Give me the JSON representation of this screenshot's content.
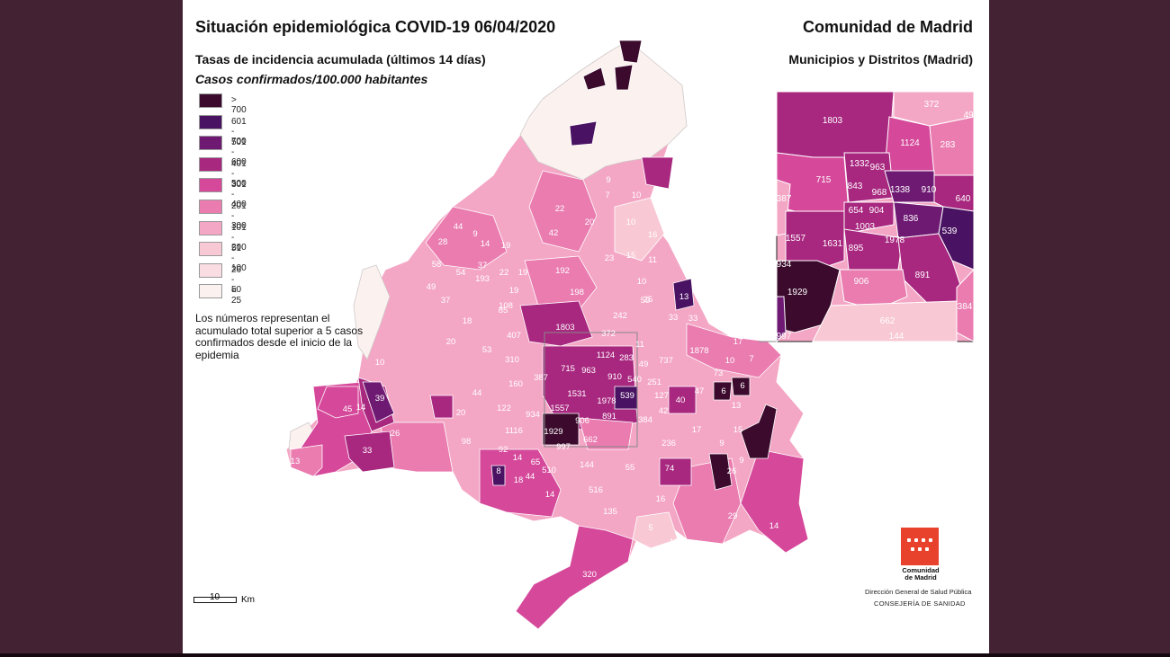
{
  "header": {
    "title": "Situación epidemiológica COVID-19  06/04/2020",
    "subtitle": "Tasas de incidencia acumulada (últimos 14 días)",
    "subtitle2": "Casos confirmados/100.000 habitantes",
    "org": "Comunidad de Madrid",
    "org_sub": "Municipios y Distritos (Madrid)"
  },
  "legend": [
    {
      "label": "> 700",
      "color": "#3b0a2c"
    },
    {
      "label": "601 - 700",
      "color": "#4a1262"
    },
    {
      "label": "501 - 600",
      "color": "#6e1a73"
    },
    {
      "label": "401 - 500",
      "color": "#a8277f"
    },
    {
      "label": "301 - 400",
      "color": "#d5489a"
    },
    {
      "label": "201 - 300",
      "color": "#ea7cb0"
    },
    {
      "label": "101 - 200",
      "color": "#f4a6c5"
    },
    {
      "label": "51 - 100",
      "color": "#f8c8d4"
    },
    {
      "label": "26 - 50",
      "color": "#f9dde3"
    },
    {
      "label": "< 25",
      "color": "#fbf2f0"
    }
  ],
  "note": "Los números representan el acumulado total superior a 5 casos confirmados desde el inicio de la epidemia",
  "scale": {
    "value": "10",
    "unit": "Km"
  },
  "logo": {
    "line1": "Comunidad",
    "line2": "de Madrid"
  },
  "footer": {
    "direccion": "Dirección General de Salud Pública",
    "consejeria": "CONSEJERÍA DE SANIDAD"
  },
  "map_labels": [
    "44",
    "28",
    "9",
    "14",
    "19",
    "58",
    "54",
    "37",
    "22",
    "19",
    "42",
    "192",
    "20",
    "10",
    "16",
    "23",
    "15",
    "11",
    "49",
    "37",
    "193",
    "19",
    "198",
    "10",
    "59",
    "13",
    "18",
    "108",
    "85",
    "242",
    "25",
    "33",
    "33",
    "106",
    "20",
    "53",
    "407",
    "1803",
    "372",
    "49",
    "1878",
    "17",
    "10",
    "310",
    "715",
    "963",
    "1124",
    "283",
    "737",
    "73",
    "7",
    "11",
    "160",
    "387",
    "910",
    "540",
    "251",
    "6",
    "6",
    "45",
    "14",
    "39",
    "44",
    "1531",
    "1978",
    "539",
    "127",
    "47",
    "40",
    "13",
    "20",
    "122",
    "934",
    "1557",
    "891",
    "384",
    "42",
    "1116",
    "1929",
    "997",
    "906",
    "662",
    "236",
    "17",
    "15",
    "9",
    "98",
    "92",
    "14",
    "65",
    "510",
    "144",
    "55",
    "74",
    "26",
    "9",
    "33",
    "26",
    "13",
    "8",
    "18",
    "44",
    "14",
    "516",
    "16",
    "29",
    "135",
    "14",
    "320",
    "5",
    "15",
    "10",
    "9",
    "8",
    "7",
    "10",
    "22"
  ],
  "inset_labels": [
    "1803",
    "372",
    "49",
    "1124",
    "283",
    "1332",
    "963",
    "715",
    "843",
    "968",
    "1338",
    "910",
    "387",
    "640",
    "654",
    "904",
    "836",
    "539",
    "1003",
    "1557",
    "1631",
    "895",
    "1978",
    "934",
    "891",
    "1929",
    "906",
    "384",
    "662",
    "997",
    "144"
  ]
}
